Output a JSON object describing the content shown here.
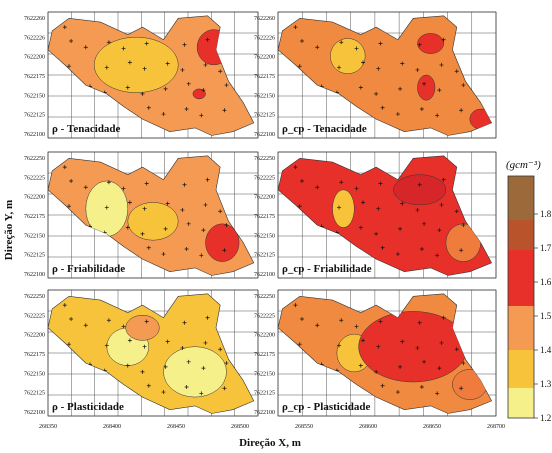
{
  "chart_data": {
    "type": "heatmap",
    "xlabel": "Direção X, m",
    "ylabel": "Direção Y, m",
    "x_ticks": [
      "268350",
      "268400",
      "268450",
      "268500",
      "268550",
      "268600",
      "268650",
      "268700"
    ],
    "y_ticks_top_row": [
      "7622260",
      "7622226",
      "7622200",
      "7622175",
      "7622150",
      "7622125",
      "7622100"
    ],
    "y_ticks_middle_row": [
      "7622250",
      "7622225",
      "7622200",
      "7622175",
      "7622150",
      "7622125",
      "7622100"
    ],
    "y_ticks_bottom_row": [
      "7622250",
      "7622225",
      "7622200",
      "7622175",
      "7622150",
      "7622125",
      "7622100"
    ],
    "colorbar": {
      "unit": "(gcm⁻³)",
      "ticks": [
        "1.8",
        "1.7",
        "1.6",
        "1.5",
        "1.4",
        "1.3",
        "1.2"
      ],
      "colors": [
        "#ef5b2b",
        "#e8302a",
        "#f49a52",
        "#f7c33b",
        "#f5e87a",
        "#9c6a3a"
      ]
    },
    "panels": [
      {
        "label": "ρ - Tenacidade",
        "background_class": 1.4,
        "min": 1.3,
        "max": 1.55
      },
      {
        "label": "ρ_cp - Tenacidade",
        "background_class": 1.45,
        "min": 1.35,
        "max": 1.6
      },
      {
        "label": "ρ - Friabilidade",
        "background_class": 1.4,
        "min": 1.3,
        "max": 1.55
      },
      {
        "label": "ρ_cp - Friabilidade",
        "background_class": 1.55,
        "min": 1.35,
        "max": 1.6
      },
      {
        "label": "ρ - Plasticidade",
        "background_class": 1.35,
        "min": 1.3,
        "max": 1.55
      },
      {
        "label": "ρ_cp - Plasticidade",
        "background_class": 1.45,
        "min": 1.35,
        "max": 1.6
      }
    ]
  }
}
